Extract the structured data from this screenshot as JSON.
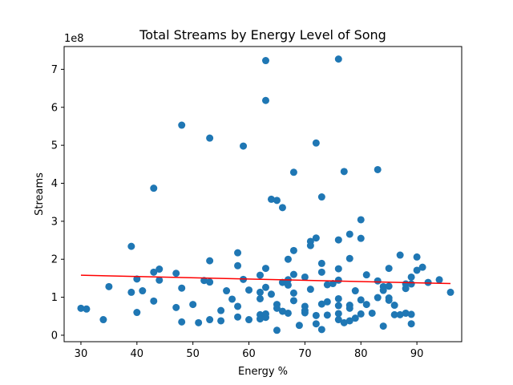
{
  "chart_data": {
    "type": "scatter",
    "title": "Total Streams by Energy Level of Song",
    "xlabel": "Energy %",
    "ylabel": "Streams",
    "y_offset_label": "1e8",
    "xlim": [
      27,
      98
    ],
    "ylim": [
      -0.17,
      7.6
    ],
    "y_unit_multiplier": 100000000,
    "x_ticks": [
      30,
      40,
      50,
      60,
      70,
      80,
      90
    ],
    "x_tick_labels": [
      "30",
      "40",
      "50",
      "60",
      "70",
      "80",
      "90"
    ],
    "y_ticks": [
      0,
      1,
      2,
      3,
      4,
      5,
      6,
      7
    ],
    "y_tick_labels": [
      "0",
      "1",
      "2",
      "3",
      "4",
      "5",
      "6",
      "7"
    ],
    "grid": false,
    "colors": {
      "points": "#1f77b4",
      "trend": "#ff0000"
    },
    "series": [
      {
        "kind": "points",
        "x": [
          30,
          31,
          34,
          35,
          39,
          39,
          40,
          40,
          41,
          43,
          43,
          43,
          44,
          44,
          47,
          47,
          48,
          48,
          48,
          50,
          51,
          52,
          53,
          53,
          53,
          53,
          55,
          55,
          56,
          57,
          58,
          58,
          58,
          58,
          59,
          59,
          60,
          60,
          62,
          62,
          62,
          62,
          62,
          63,
          63,
          63,
          63,
          63,
          63,
          64,
          64,
          65,
          65,
          65,
          65,
          66,
          66,
          66,
          67,
          67,
          67,
          67,
          68,
          68,
          68,
          68,
          68,
          69,
          70,
          70,
          70,
          70,
          71,
          71,
          71,
          72,
          72,
          72,
          72,
          73,
          73,
          73,
          73,
          73,
          74,
          74,
          74,
          75,
          76,
          76,
          76,
          76,
          76,
          76,
          76,
          76,
          77,
          77,
          78,
          78,
          78,
          78,
          78,
          79,
          79,
          80,
          80,
          80,
          80,
          81,
          81,
          82,
          83,
          83,
          83,
          84,
          84,
          84,
          85,
          85,
          85,
          85,
          86,
          86,
          87,
          87,
          88,
          88,
          88,
          89,
          89,
          89,
          89,
          90,
          90,
          91,
          92,
          94,
          96
        ],
        "y": [
          0.71,
          0.69,
          0.41,
          1.28,
          2.34,
          1.13,
          0.6,
          1.48,
          1.17,
          3.87,
          1.66,
          0.9,
          1.74,
          1.45,
          1.63,
          0.73,
          5.53,
          1.24,
          0.35,
          0.81,
          0.33,
          1.44,
          5.19,
          1.96,
          1.4,
          0.41,
          0.65,
          0.38,
          1.17,
          0.95,
          2.17,
          1.83,
          0.76,
          0.48,
          4.98,
          1.47,
          1.19,
          0.41,
          1.58,
          1.13,
          0.96,
          0.54,
          0.43,
          7.23,
          6.18,
          1.76,
          1.26,
          0.56,
          0.47,
          3.58,
          1.08,
          3.55,
          0.81,
          0.71,
          0.13,
          3.36,
          1.39,
          0.63,
          2.0,
          1.46,
          1.32,
          0.58,
          4.29,
          2.23,
          1.6,
          1.11,
          0.91,
          0.26,
          1.53,
          0.76,
          0.59,
          0.65,
          2.47,
          2.36,
          1.21,
          5.06,
          2.56,
          0.52,
          0.3,
          3.64,
          1.89,
          1.66,
          0.82,
          0.15,
          1.33,
          0.88,
          0.53,
          1.36,
          7.27,
          2.51,
          1.75,
          1.45,
          0.96,
          0.78,
          0.57,
          0.41,
          4.31,
          0.33,
          2.66,
          2.02,
          0.79,
          0.71,
          0.38,
          1.17,
          0.45,
          3.04,
          2.55,
          0.93,
          0.56,
          1.59,
          0.81,
          0.58,
          4.36,
          1.43,
          0.99,
          1.28,
          1.18,
          0.24,
          1.76,
          1.29,
          0.98,
          0.92,
          0.79,
          0.54,
          2.11,
          0.54,
          1.35,
          1.23,
          0.58,
          1.53,
          1.35,
          0.55,
          0.3,
          2.06,
          1.71,
          1.79,
          1.39,
          1.46,
          1.13
        ]
      },
      {
        "kind": "trend-line",
        "x": [
          30,
          96
        ],
        "y": [
          1.58,
          1.36
        ]
      }
    ]
  }
}
